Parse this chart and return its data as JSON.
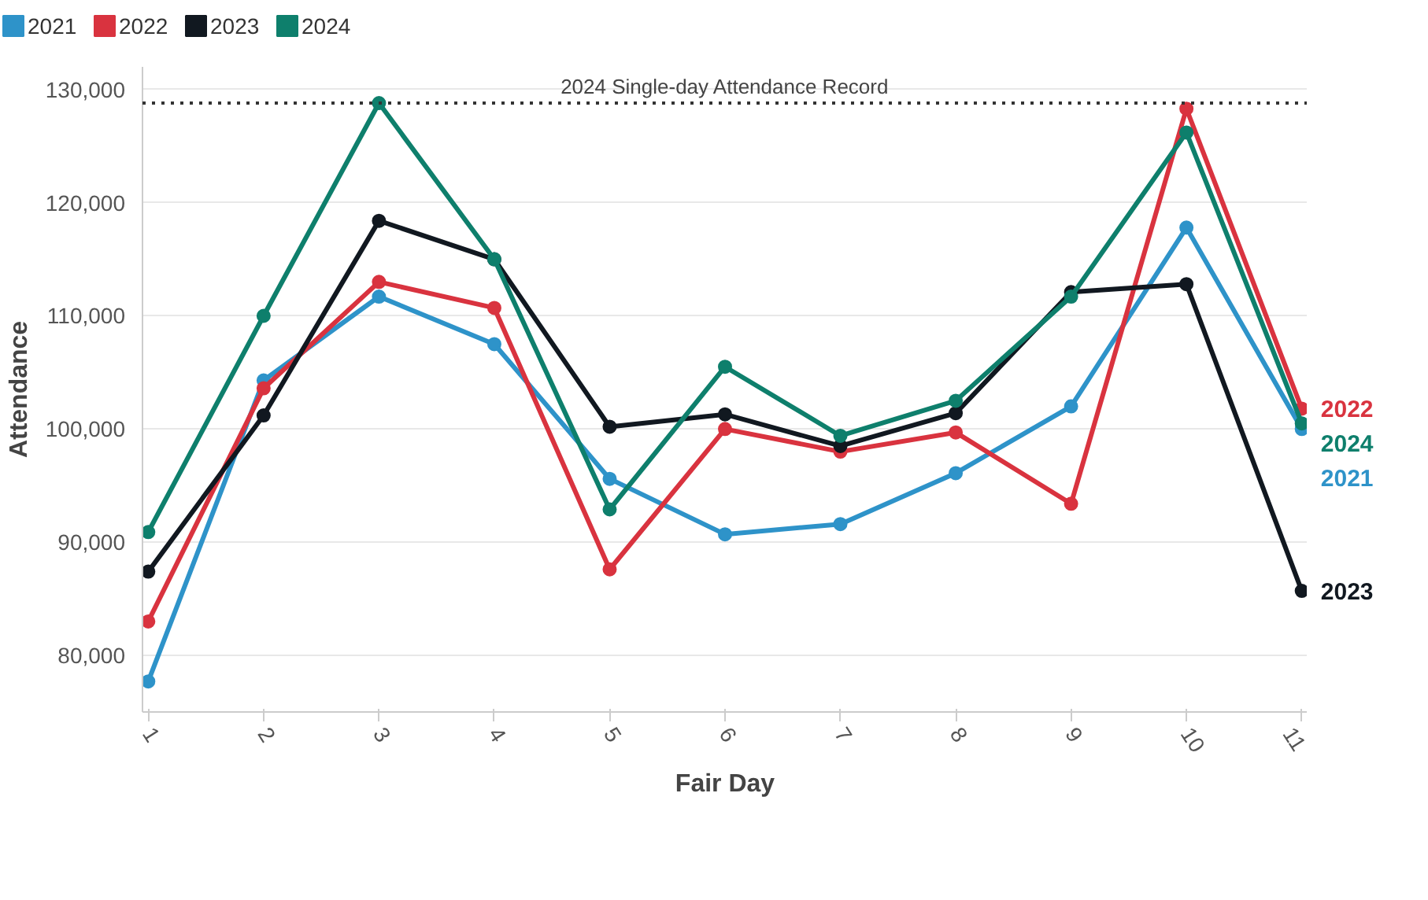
{
  "chart_data": {
    "type": "line",
    "xlabel": "Fair Day",
    "ylabel": "Attendance",
    "x": [
      1,
      2,
      3,
      4,
      5,
      6,
      7,
      8,
      9,
      10,
      11
    ],
    "series": [
      {
        "name": "2021",
        "color": "#2e93c9",
        "values": [
          77700,
          104300,
          111700,
          107500,
          95600,
          90700,
          91600,
          96100,
          102000,
          117800,
          100000
        ]
      },
      {
        "name": "2022",
        "color": "#d9333f",
        "values": [
          83000,
          103600,
          113000,
          110700,
          87600,
          100000,
          98000,
          99700,
          93400,
          128300,
          101800
        ]
      },
      {
        "name": "2023",
        "color": "#111820",
        "values": [
          87400,
          101200,
          118400,
          115000,
          100200,
          101300,
          98500,
          101400,
          112100,
          112800,
          85700
        ]
      },
      {
        "name": "2024",
        "color": "#0e7f6c",
        "values": [
          90900,
          110000,
          128800,
          115000,
          92900,
          105500,
          99400,
          102500,
          111700,
          126200,
          100500
        ]
      }
    ],
    "xlim": [
      0.95,
      11.05
    ],
    "xticks": [
      1,
      2,
      3,
      4,
      5,
      6,
      7,
      8,
      9,
      10,
      11
    ],
    "ylim": [
      75000,
      132000
    ],
    "yticks": [
      {
        "value": 80000,
        "label": "80,000"
      },
      {
        "value": 90000,
        "label": "90,000"
      },
      {
        "value": 100000,
        "label": "100,000"
      },
      {
        "value": 110000,
        "label": "110,000"
      },
      {
        "value": 120000,
        "label": "120,000"
      },
      {
        "value": 130000,
        "label": "130,000"
      }
    ],
    "ref_lines": [
      {
        "axis": "y",
        "value": 128800,
        "label": "2024 Single-day Attendance Record",
        "color": "#333333",
        "line_style": "dotted"
      }
    ],
    "grid": "y",
    "legend": "top",
    "marker": "circle",
    "line_style": "solid"
  }
}
